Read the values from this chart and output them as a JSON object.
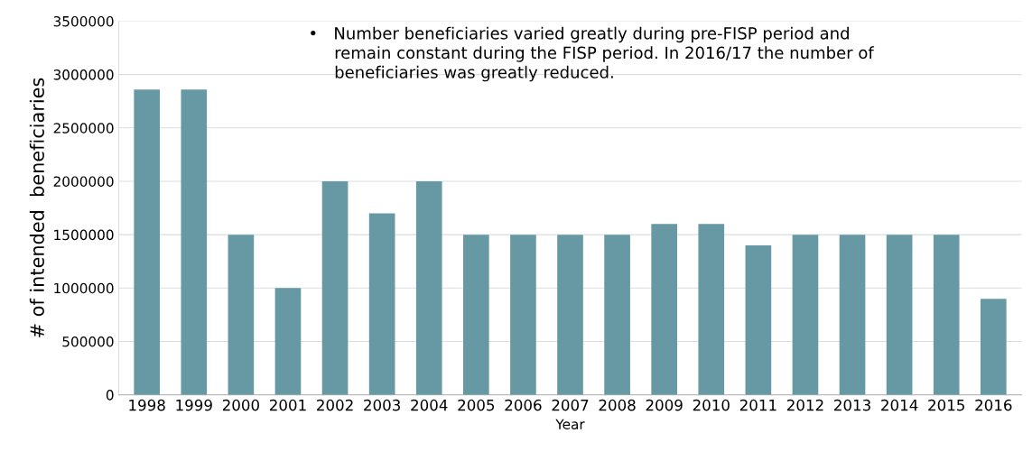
{
  "chart_data": {
    "type": "bar",
    "xlabel": "Year",
    "ylabel": "# of intended  beneficiaries",
    "categories": [
      "1998",
      "1999",
      "2000",
      "2001",
      "2002",
      "2003",
      "2004",
      "2005",
      "2006",
      "2007",
      "2008",
      "2009",
      "2010",
      "2011",
      "2012",
      "2013",
      "2014",
      "2015",
      "2016"
    ],
    "values": [
      2860000,
      2860000,
      1500000,
      1000000,
      2000000,
      1700000,
      2000000,
      1500000,
      1500000,
      1500000,
      1500000,
      1600000,
      1600000,
      1400000,
      1500000,
      1500000,
      1500000,
      1500000,
      900000
    ],
    "color": "#6699a3",
    "ylim": [
      0,
      3500000
    ],
    "yticks": [
      0,
      500000,
      1000000,
      1500000,
      2000000,
      2500000,
      3000000,
      3500000
    ],
    "grid": "y",
    "legend": false,
    "annotations": [
      "•   Number beneficiaries varied greatly during pre-FISP period and\n     remain constant during the FISP period. In 2016/17 the number of\n     beneficiaries was greatly reduced."
    ]
  }
}
